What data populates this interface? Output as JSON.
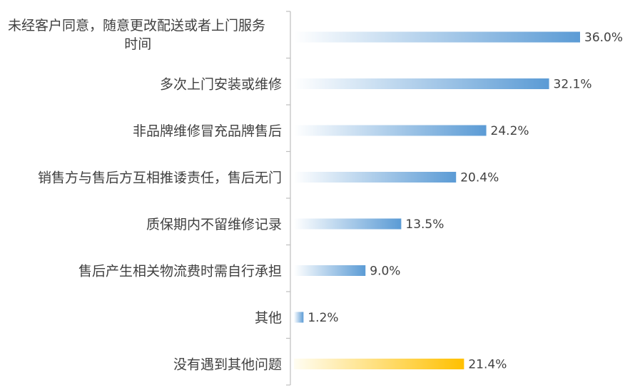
{
  "chart_data": {
    "type": "bar",
    "orientation": "horizontal",
    "categories": [
      "未经客户同意，随意更改配送或者上门服务时间",
      "多次上门安装或维修",
      "非品牌维修冒充品牌售后",
      "销售方与售后方互相推诿责任，售后无门",
      "质保期内不留维修记录",
      "售后产生相关物流费时需自行承担",
      "其他",
      "没有遇到其他问题"
    ],
    "values": [
      36.0,
      32.1,
      24.2,
      20.4,
      13.5,
      9.0,
      1.2,
      21.4
    ],
    "value_labels": [
      "36.0%",
      "32.1%",
      "24.2%",
      "20.4%",
      "13.5%",
      "9.0%",
      "1.2%",
      "21.4%"
    ],
    "unit": "%",
    "xlim": [
      0,
      36.0
    ],
    "grid": false,
    "legend": "none",
    "colors": {
      "bar_start": "#ffffff",
      "bar_end": "#5b9bd5",
      "highlight_start": "#fffdf2",
      "highlight_end": "#ffc000",
      "text": "#404040",
      "axis": "#bfbfbf"
    },
    "highlight_index": 7
  }
}
